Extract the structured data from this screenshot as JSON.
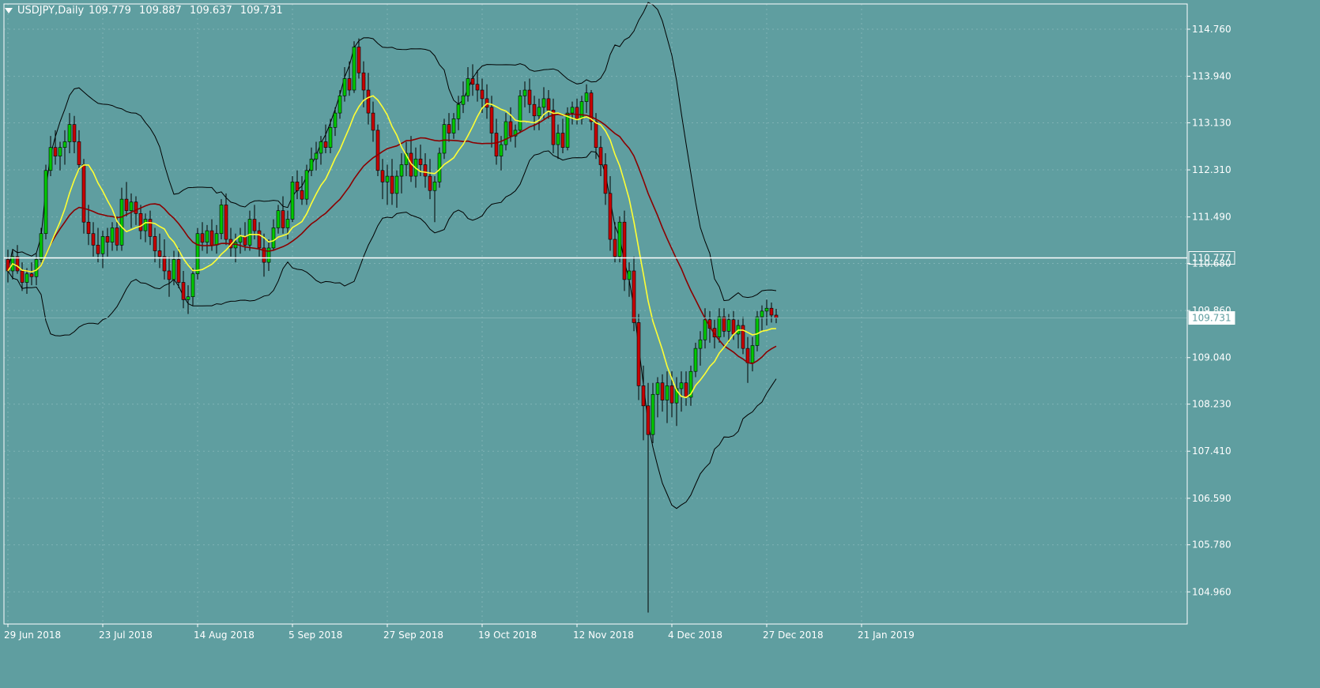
{
  "header": {
    "symbol": "USDJPY,Daily",
    "open": "109.779",
    "high": "109.887",
    "low": "109.637",
    "close": "109.731"
  },
  "colors": {
    "background": "#5f9ea0",
    "axis_text": "#ffffff",
    "bull_candle": "#00c800",
    "bear_candle": "#c80000",
    "wick": "#000000",
    "ma_fast": "#ffff33",
    "ma_slow": "#8b0000",
    "bands": "#000000",
    "horizontal_line": "#ffffff"
  },
  "chart_data": {
    "type": "candlestick",
    "instrument": "USDJPY",
    "timeframe": "Daily",
    "ylim": [
      104.4,
      115.2
    ],
    "y_ticks": [
      "114.760",
      "113.940",
      "113.130",
      "112.310",
      "111.490",
      "110.680",
      "109.860",
      "109.040",
      "108.230",
      "107.410",
      "106.590",
      "105.780",
      "104.960"
    ],
    "x_ticks": [
      {
        "label": "29 Jun 2018",
        "index": 0
      },
      {
        "label": "23 Jul 2018",
        "index": 20
      },
      {
        "label": "14 Aug 2018",
        "index": 40
      },
      {
        "label": "5 Sep 2018",
        "index": 60
      },
      {
        "label": "27 Sep 2018",
        "index": 80
      },
      {
        "label": "19 Oct 2018",
        "index": 100
      },
      {
        "label": "12 Nov 2018",
        "index": 120
      },
      {
        "label": "4 Dec 2018",
        "index": 140
      },
      {
        "label": "27 Dec 2018",
        "index": 160
      },
      {
        "label": "21 Jan 2019",
        "index": 180
      }
    ],
    "horizontal_line": {
      "value": 110.777,
      "label": "110.777"
    },
    "current_price": {
      "value": 109.731,
      "label": "109.731"
    },
    "ohlc": [
      [
        110.75,
        110.92,
        110.35,
        110.55
      ],
      [
        110.55,
        110.9,
        110.4,
        110.8
      ],
      [
        110.8,
        111.0,
        110.5,
        110.55
      ],
      [
        110.55,
        110.7,
        110.2,
        110.35
      ],
      [
        110.35,
        110.6,
        110.15,
        110.5
      ],
      [
        110.5,
        110.7,
        110.3,
        110.45
      ],
      [
        110.45,
        110.85,
        110.3,
        110.75
      ],
      [
        110.75,
        111.3,
        110.7,
        111.2
      ],
      [
        111.2,
        112.4,
        111.1,
        112.3
      ],
      [
        112.3,
        112.9,
        112.2,
        112.7
      ],
      [
        112.7,
        113.0,
        112.4,
        112.55
      ],
      [
        112.55,
        112.8,
        112.3,
        112.7
      ],
      [
        112.7,
        113.0,
        112.4,
        112.8
      ],
      [
        112.8,
        113.3,
        112.6,
        113.1
      ],
      [
        113.1,
        113.25,
        112.6,
        112.8
      ],
      [
        112.8,
        113.0,
        112.3,
        112.4
      ],
      [
        112.4,
        112.5,
        111.2,
        111.4
      ],
      [
        111.4,
        111.7,
        111.0,
        111.2
      ],
      [
        111.2,
        111.4,
        110.8,
        111.0
      ],
      [
        111.0,
        111.3,
        110.7,
        110.85
      ],
      [
        110.85,
        111.25,
        110.6,
        111.15
      ],
      [
        111.15,
        111.3,
        110.8,
        111.05
      ],
      [
        111.05,
        111.4,
        110.9,
        111.3
      ],
      [
        111.3,
        111.5,
        110.9,
        111.0
      ],
      [
        111.0,
        112.0,
        110.9,
        111.8
      ],
      [
        111.8,
        112.1,
        111.5,
        111.6
      ],
      [
        111.6,
        111.9,
        111.3,
        111.75
      ],
      [
        111.75,
        111.85,
        111.35,
        111.55
      ],
      [
        111.55,
        111.7,
        111.1,
        111.25
      ],
      [
        111.25,
        111.55,
        111.05,
        111.45
      ],
      [
        111.45,
        111.6,
        111.0,
        111.15
      ],
      [
        111.15,
        111.3,
        110.7,
        110.9
      ],
      [
        110.9,
        111.2,
        110.6,
        110.8
      ],
      [
        110.8,
        111.1,
        110.4,
        110.55
      ],
      [
        110.55,
        110.8,
        110.1,
        110.4
      ],
      [
        110.4,
        110.9,
        110.3,
        110.75
      ],
      [
        110.75,
        110.95,
        110.25,
        110.35
      ],
      [
        110.35,
        110.55,
        109.9,
        110.05
      ],
      [
        110.05,
        110.3,
        109.8,
        110.1
      ],
      [
        110.1,
        110.6,
        109.95,
        110.5
      ],
      [
        110.5,
        111.3,
        110.4,
        111.2
      ],
      [
        111.2,
        111.4,
        110.9,
        111.05
      ],
      [
        111.05,
        111.35,
        110.85,
        111.25
      ],
      [
        111.25,
        111.45,
        110.9,
        111.0
      ],
      [
        111.0,
        111.35,
        110.85,
        111.2
      ],
      [
        111.2,
        111.8,
        111.1,
        111.7
      ],
      [
        111.7,
        111.9,
        111.0,
        111.1
      ],
      [
        111.1,
        111.3,
        110.8,
        110.95
      ],
      [
        110.95,
        111.2,
        110.7,
        111.05
      ],
      [
        111.05,
        111.3,
        110.85,
        111.15
      ],
      [
        111.15,
        111.4,
        110.9,
        111.0
      ],
      [
        111.0,
        111.6,
        110.9,
        111.45
      ],
      [
        111.45,
        111.7,
        111.1,
        111.25
      ],
      [
        111.25,
        111.4,
        110.8,
        110.95
      ],
      [
        110.95,
        111.2,
        110.45,
        110.7
      ],
      [
        110.7,
        111.1,
        110.55,
        110.95
      ],
      [
        110.95,
        111.45,
        110.9,
        111.3
      ],
      [
        111.3,
        111.7,
        111.2,
        111.6
      ],
      [
        111.6,
        111.85,
        111.2,
        111.3
      ],
      [
        111.3,
        111.6,
        111.1,
        111.45
      ],
      [
        111.45,
        112.2,
        111.4,
        112.1
      ],
      [
        112.1,
        112.3,
        111.8,
        111.95
      ],
      [
        111.95,
        112.2,
        111.7,
        111.8
      ],
      [
        111.8,
        112.4,
        111.7,
        112.3
      ],
      [
        112.3,
        112.7,
        112.2,
        112.5
      ],
      [
        112.5,
        112.8,
        112.3,
        112.6
      ],
      [
        112.6,
        112.9,
        112.4,
        112.8
      ],
      [
        112.8,
        113.1,
        112.6,
        112.7
      ],
      [
        112.7,
        113.2,
        112.6,
        113.05
      ],
      [
        113.05,
        113.4,
        112.9,
        113.3
      ],
      [
        113.3,
        113.7,
        113.2,
        113.6
      ],
      [
        113.6,
        114.1,
        113.5,
        113.9
      ],
      [
        113.9,
        114.2,
        113.6,
        113.7
      ],
      [
        113.7,
        114.55,
        113.65,
        114.45
      ],
      [
        114.45,
        114.6,
        113.9,
        114.0
      ],
      [
        114.0,
        114.2,
        113.4,
        113.7
      ],
      [
        113.7,
        114.0,
        113.1,
        113.3
      ],
      [
        113.3,
        113.5,
        112.8,
        113.0
      ],
      [
        113.0,
        113.1,
        112.2,
        112.3
      ],
      [
        112.3,
        112.5,
        111.8,
        112.1
      ],
      [
        112.1,
        112.4,
        111.7,
        112.2
      ],
      [
        112.2,
        112.5,
        111.7,
        111.9
      ],
      [
        111.9,
        112.3,
        111.65,
        112.2
      ],
      [
        112.2,
        112.6,
        111.9,
        112.4
      ],
      [
        112.4,
        112.8,
        112.2,
        112.6
      ],
      [
        112.6,
        112.9,
        112.1,
        112.2
      ],
      [
        112.2,
        112.7,
        112.0,
        112.5
      ],
      [
        112.5,
        112.75,
        112.2,
        112.4
      ],
      [
        112.4,
        112.6,
        112.0,
        112.2
      ],
      [
        112.2,
        112.5,
        111.8,
        111.95
      ],
      [
        111.95,
        112.2,
        111.4,
        112.1
      ],
      [
        112.1,
        112.7,
        112.0,
        112.6
      ],
      [
        112.6,
        113.2,
        112.5,
        113.1
      ],
      [
        113.1,
        113.3,
        112.8,
        112.95
      ],
      [
        112.95,
        113.3,
        112.85,
        113.2
      ],
      [
        113.2,
        113.6,
        113.0,
        113.45
      ],
      [
        113.45,
        113.85,
        113.3,
        113.6
      ],
      [
        113.6,
        114.1,
        113.5,
        113.9
      ],
      [
        113.9,
        114.15,
        113.6,
        113.8
      ],
      [
        113.8,
        114.05,
        113.5,
        113.7
      ],
      [
        113.7,
        113.9,
        113.3,
        113.55
      ],
      [
        113.55,
        113.8,
        113.2,
        113.4
      ],
      [
        113.4,
        113.6,
        112.7,
        112.95
      ],
      [
        112.95,
        113.2,
        112.4,
        112.55
      ],
      [
        112.55,
        112.9,
        112.3,
        112.75
      ],
      [
        112.75,
        113.3,
        112.65,
        113.15
      ],
      [
        113.15,
        113.4,
        112.8,
        112.9
      ],
      [
        112.9,
        113.1,
        112.7,
        113.0
      ],
      [
        113.0,
        113.7,
        112.95,
        113.6
      ],
      [
        113.6,
        113.85,
        113.4,
        113.7
      ],
      [
        113.7,
        113.9,
        113.3,
        113.45
      ],
      [
        113.45,
        113.6,
        113.0,
        113.25
      ],
      [
        113.25,
        113.55,
        113.0,
        113.4
      ],
      [
        113.4,
        113.75,
        113.2,
        113.55
      ],
      [
        113.55,
        113.7,
        113.2,
        113.35
      ],
      [
        113.35,
        113.55,
        112.6,
        112.75
      ],
      [
        112.75,
        113.1,
        112.5,
        112.95
      ],
      [
        112.95,
        113.2,
        112.6,
        112.7
      ],
      [
        112.7,
        113.4,
        112.65,
        113.3
      ],
      [
        113.3,
        113.5,
        113.1,
        113.4
      ],
      [
        113.4,
        113.55,
        113.1,
        113.2
      ],
      [
        113.2,
        113.6,
        113.1,
        113.5
      ],
      [
        113.5,
        113.8,
        113.3,
        113.65
      ],
      [
        113.65,
        113.7,
        113.0,
        113.15
      ],
      [
        113.15,
        113.3,
        112.5,
        112.7
      ],
      [
        112.7,
        112.9,
        112.2,
        112.4
      ],
      [
        112.4,
        112.6,
        111.7,
        111.9
      ],
      [
        111.9,
        112.2,
        110.9,
        111.1
      ],
      [
        111.1,
        111.4,
        110.7,
        110.8
      ],
      [
        110.8,
        111.5,
        110.7,
        111.4
      ],
      [
        111.4,
        111.6,
        110.2,
        110.4
      ],
      [
        110.4,
        110.7,
        110.1,
        110.55
      ],
      [
        110.55,
        110.8,
        109.5,
        109.65
      ],
      [
        109.65,
        109.8,
        108.3,
        108.55
      ],
      [
        108.55,
        108.9,
        107.6,
        108.2
      ],
      [
        108.2,
        108.6,
        104.6,
        107.7
      ],
      [
        107.7,
        108.6,
        107.55,
        108.4
      ],
      [
        108.4,
        108.7,
        108.0,
        108.6
      ],
      [
        108.6,
        108.75,
        108.1,
        108.3
      ],
      [
        108.3,
        108.8,
        107.9,
        108.55
      ],
      [
        108.55,
        108.8,
        108.0,
        108.25
      ],
      [
        108.25,
        108.7,
        107.85,
        108.5
      ],
      [
        108.5,
        108.8,
        108.1,
        108.6
      ],
      [
        108.6,
        108.8,
        108.2,
        108.35
      ],
      [
        108.35,
        108.9,
        108.2,
        108.8
      ],
      [
        108.8,
        109.3,
        108.7,
        109.2
      ],
      [
        109.2,
        109.5,
        108.9,
        109.35
      ],
      [
        109.35,
        109.9,
        109.2,
        109.7
      ],
      [
        109.7,
        109.85,
        109.3,
        109.55
      ],
      [
        109.55,
        109.7,
        109.2,
        109.4
      ],
      [
        109.4,
        109.9,
        109.3,
        109.75
      ],
      [
        109.75,
        109.9,
        109.4,
        109.5
      ],
      [
        109.5,
        109.8,
        109.3,
        109.7
      ],
      [
        109.7,
        109.85,
        109.35,
        109.45
      ],
      [
        109.45,
        109.7,
        109.2,
        109.6
      ],
      [
        109.6,
        109.75,
        109.1,
        109.2
      ],
      [
        109.2,
        109.4,
        108.6,
        108.95
      ],
      [
        108.95,
        109.4,
        108.8,
        109.25
      ],
      [
        109.25,
        109.85,
        109.15,
        109.75
      ],
      [
        109.75,
        109.95,
        109.5,
        109.85
      ],
      [
        109.85,
        110.05,
        109.6,
        109.9
      ],
      [
        109.9,
        110.0,
        109.65,
        109.78
      ],
      [
        109.78,
        109.89,
        109.64,
        109.73
      ]
    ],
    "indicators": [
      {
        "name": "Fast MA",
        "type": "sma",
        "period": 10,
        "color": "#ffff33"
      },
      {
        "name": "Slow MA",
        "type": "sma",
        "period": 25,
        "color": "#8b0000"
      },
      {
        "name": "Bollinger Bands",
        "type": "bands",
        "period": 20,
        "deviation": 2,
        "color": "#000000"
      }
    ]
  }
}
